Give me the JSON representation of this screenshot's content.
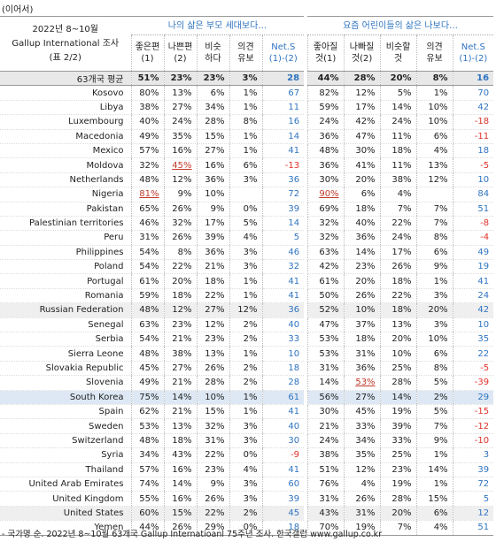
{
  "header": {
    "continued": "(이어서)",
    "title_lines": [
      "2022년 8~10월",
      "Gallup International 조사",
      "(표 2/2)"
    ]
  },
  "table": {
    "groups": [
      "나의 삶은 부모 세대보다…",
      "요즘 어린이들의 삶은 나보다…"
    ],
    "columns": [
      [
        "좋은편",
        "(1)"
      ],
      [
        "나쁜편",
        "(2)"
      ],
      [
        "비슷",
        "하다"
      ],
      [
        "의견",
        "유보"
      ],
      [
        "Net.S",
        "(1)-(2)"
      ],
      [
        "좋아질",
        "것(1)"
      ],
      [
        "나빠질",
        "것(2)"
      ],
      [
        "비슷할",
        "것"
      ],
      [
        "의견",
        "유보"
      ],
      [
        "Net.S",
        "(1)-(2)"
      ]
    ],
    "rows": [
      [
        "63개국 평균",
        "51%",
        "23%",
        "23%",
        "3%",
        "28",
        "44%",
        "28%",
        "20%",
        "8%",
        "16"
      ],
      [
        "Kosovo",
        "80%",
        "13%",
        "6%",
        "1%",
        "67",
        "82%",
        "12%",
        "5%",
        "1%",
        "70"
      ],
      [
        "Libya",
        "38%",
        "27%",
        "34%",
        "1%",
        "11",
        "59%",
        "17%",
        "14%",
        "10%",
        "42"
      ],
      [
        "Luxembourg",
        "40%",
        "24%",
        "28%",
        "8%",
        "16",
        "24%",
        "42%",
        "24%",
        "10%",
        "-18"
      ],
      [
        "Macedonia",
        "49%",
        "35%",
        "15%",
        "1%",
        "14",
        "36%",
        "47%",
        "11%",
        "6%",
        "-11"
      ],
      [
        "Mexico",
        "57%",
        "16%",
        "27%",
        "1%",
        "41",
        "48%",
        "30%",
        "18%",
        "4%",
        "18"
      ],
      [
        "Moldova",
        "32%",
        "45%",
        "16%",
        "6%",
        "-13",
        "36%",
        "41%",
        "11%",
        "13%",
        "-5"
      ],
      [
        "Netherlands",
        "48%",
        "12%",
        "36%",
        "3%",
        "36",
        "30%",
        "20%",
        "38%",
        "12%",
        "10"
      ],
      [
        "Nigeria",
        "81%",
        "9%",
        "10%",
        null,
        "72",
        "90%",
        "6%",
        "4%",
        null,
        "84"
      ],
      [
        "Pakistan",
        "65%",
        "26%",
        "9%",
        "0%",
        "39",
        "69%",
        "18%",
        "7%",
        "7%",
        "51"
      ],
      [
        "Palestinian territories",
        "46%",
        "32%",
        "17%",
        "5%",
        "14",
        "32%",
        "40%",
        "22%",
        "7%",
        "-8"
      ],
      [
        "Peru",
        "31%",
        "26%",
        "39%",
        "4%",
        "5",
        "32%",
        "36%",
        "24%",
        "8%",
        "-4"
      ],
      [
        "Philippines",
        "54%",
        "8%",
        "36%",
        "3%",
        "46",
        "63%",
        "14%",
        "17%",
        "6%",
        "49"
      ],
      [
        "Poland",
        "54%",
        "22%",
        "21%",
        "3%",
        "32",
        "42%",
        "23%",
        "26%",
        "9%",
        "19"
      ],
      [
        "Portugal",
        "61%",
        "20%",
        "18%",
        "1%",
        "41",
        "61%",
        "20%",
        "18%",
        "1%",
        "41"
      ],
      [
        "Romania",
        "59%",
        "18%",
        "22%",
        "1%",
        "41",
        "50%",
        "26%",
        "22%",
        "3%",
        "24"
      ],
      [
        "Russian Federation",
        "48%",
        "12%",
        "27%",
        "12%",
        "36",
        "52%",
        "10%",
        "18%",
        "20%",
        "42"
      ],
      [
        "Senegal",
        "63%",
        "23%",
        "12%",
        "2%",
        "40",
        "47%",
        "37%",
        "13%",
        "3%",
        "10"
      ],
      [
        "Serbia",
        "54%",
        "21%",
        "23%",
        "2%",
        "33",
        "53%",
        "18%",
        "20%",
        "10%",
        "35"
      ],
      [
        "Sierra Leone",
        "48%",
        "38%",
        "13%",
        "1%",
        "10",
        "53%",
        "31%",
        "10%",
        "6%",
        "22"
      ],
      [
        "Slovakia Republic",
        "45%",
        "27%",
        "26%",
        "2%",
        "18",
        "31%",
        "36%",
        "25%",
        "8%",
        "-5"
      ],
      [
        "Slovenia",
        "49%",
        "21%",
        "28%",
        "2%",
        "28",
        "14%",
        "53%",
        "28%",
        "5%",
        "-39"
      ],
      [
        "South Korea",
        "75%",
        "14%",
        "10%",
        "1%",
        "61",
        "56%",
        "27%",
        "14%",
        "2%",
        "29"
      ],
      [
        "Spain",
        "62%",
        "21%",
        "15%",
        "1%",
        "41",
        "30%",
        "45%",
        "19%",
        "5%",
        "-15"
      ],
      [
        "Sweden",
        "53%",
        "13%",
        "32%",
        "3%",
        "40",
        "21%",
        "33%",
        "39%",
        "7%",
        "-12"
      ],
      [
        "Switzerland",
        "48%",
        "18%",
        "31%",
        "3%",
        "30",
        "24%",
        "34%",
        "33%",
        "9%",
        "-10"
      ],
      [
        "Syria",
        "34%",
        "43%",
        "22%",
        "0%",
        "-9",
        "38%",
        "35%",
        "25%",
        "1%",
        "3"
      ],
      [
        "Thailand",
        "57%",
        "16%",
        "23%",
        "4%",
        "41",
        "51%",
        "12%",
        "23%",
        "14%",
        "39"
      ],
      [
        "United Arab Emirates",
        "74%",
        "14%",
        "9%",
        "3%",
        "60",
        "76%",
        "4%",
        "19%",
        "1%",
        "72"
      ],
      [
        "United Kingdom",
        "55%",
        "16%",
        "26%",
        "3%",
        "39",
        "31%",
        "26%",
        "28%",
        "15%",
        "5"
      ],
      [
        "United States",
        "60%",
        "15%",
        "22%",
        "2%",
        "45",
        "43%",
        "31%",
        "20%",
        "6%",
        "12"
      ],
      [
        "Yemen",
        "44%",
        "26%",
        "29%",
        "0%",
        "18",
        "70%",
        "19%",
        "7%",
        "4%",
        "51"
      ]
    ]
  },
  "footer": {
    "note": "- 국가명 순. 2022년 8~10월 63개국 Gallup Internatioanl 75주년 조사. 한국갤럽 www.gallup.co.kr"
  }
}
